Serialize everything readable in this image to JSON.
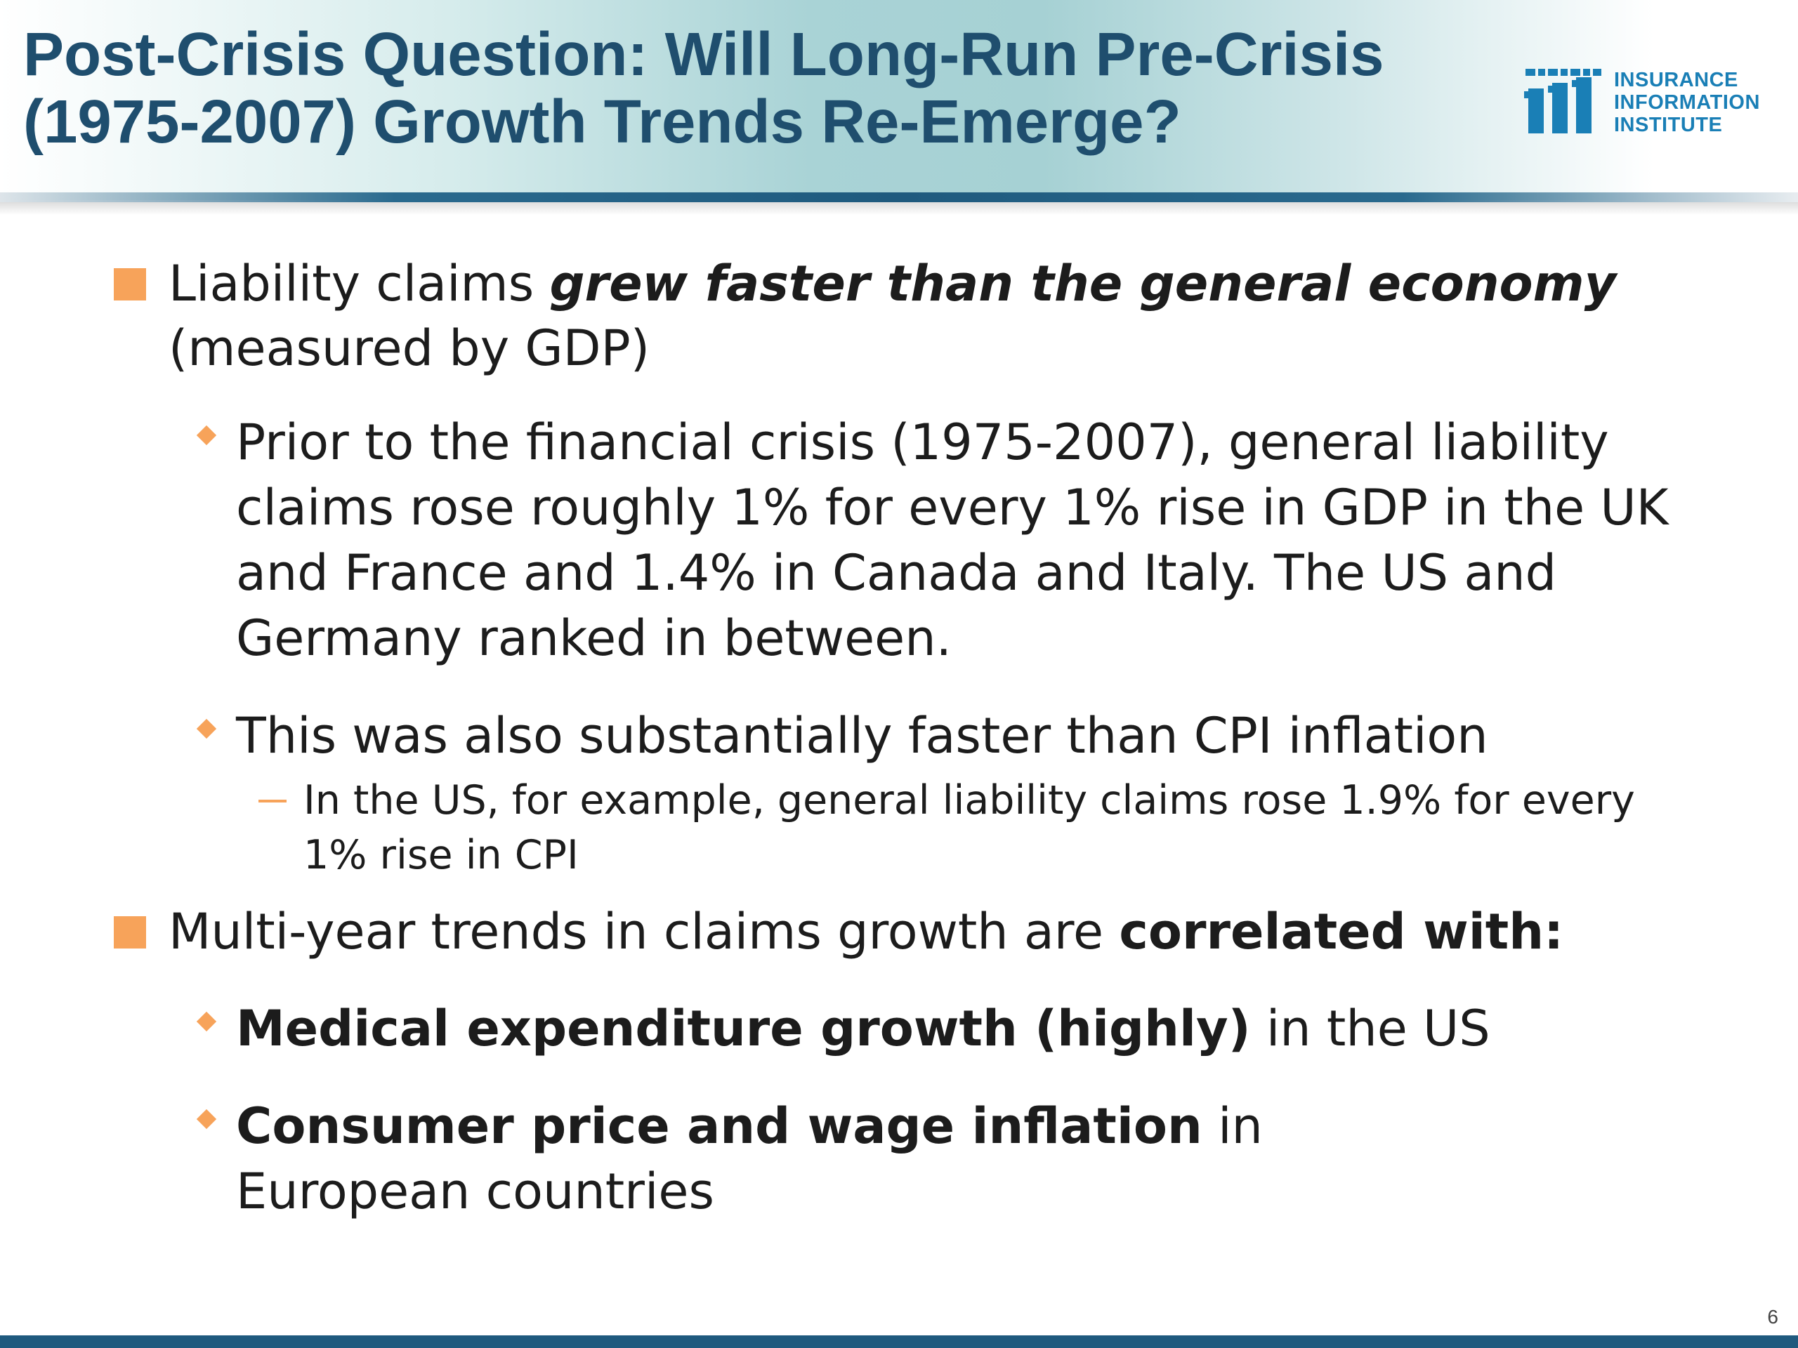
{
  "slide": {
    "title": "Post-Crisis Question: Will Long-Run Pre-Crisis (1975-2007) Growth Trends Re-Emerge?",
    "page_number": "6"
  },
  "logo": {
    "line1": "INSURANCE",
    "line2": "INFORMATION",
    "line3": "INSTITUTE",
    "color": "#1a7fb6",
    "icon": "iii-logo-icon"
  },
  "bullets": {
    "b1": {
      "prefix": "Liability claims ",
      "emphasis": "grew faster than the general economy",
      "suffix": " (measured by GDP)"
    },
    "b1_1": {
      "text": "Prior to the financial crisis (1975-2007), general liability claims rose roughly 1% for every 1% rise in GDP in the UK and France and 1.4% in Canada and Italy. The US and Germany ranked in between."
    },
    "b1_2": {
      "text": "This was also substantially faster than CPI inflation"
    },
    "b1_2_1": {
      "text": "In the US, for example, general liability claims rose 1.9% for every 1% rise in CPI"
    },
    "b2": {
      "prefix": "Multi-year trends in claims growth are ",
      "emphasis": "correlated with:"
    },
    "b2_1": {
      "emphasis": "Medical expenditure growth (highly)",
      "suffix": " in the US"
    },
    "b2_2": {
      "emphasis": "Consumer price and wage inflation",
      "suffix": " in European countries"
    }
  },
  "colors": {
    "title": "#1f4e6e",
    "bullet_marker": "#f7a35a",
    "footer_bar": "#1f5a7e"
  }
}
